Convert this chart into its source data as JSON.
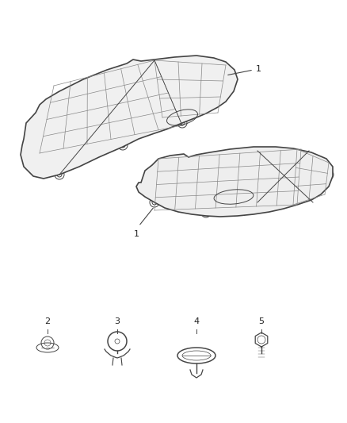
{
  "background_color": "#ffffff",
  "fig_width": 4.38,
  "fig_height": 5.33,
  "dpi": 100,
  "line_color": "#444444",
  "line_width": 1.2,
  "grid_color": "#888888",
  "grid_lw": 0.5,
  "thin_lw": 0.7,
  "shield1_color": "#dddddd",
  "shield2_color": "#cccccc",
  "label_fontsize": 8,
  "label_color": "#222222"
}
